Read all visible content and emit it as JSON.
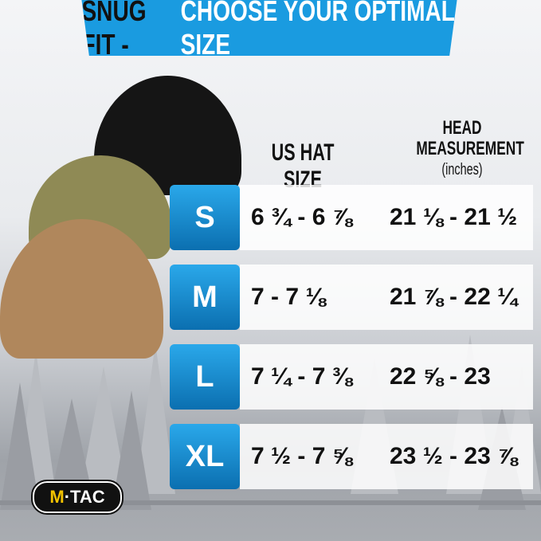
{
  "banner": {
    "title_part1": "SNUG FIT - ",
    "title_part2": "CHOOSE YOUR OPTIMAL SIZE",
    "color": "#1a9be0"
  },
  "headers": {
    "us_hat_size": "US HAT SIZE",
    "head_line1": "HEAD",
    "head_line2": "MEASUREMENT",
    "head_unit": "(inches)"
  },
  "rows": [
    {
      "size": "S",
      "us": "6 ¾ - 6 ⅞",
      "head": "21 ⅛ - 21 ½"
    },
    {
      "size": "M",
      "us": "7 - 7 ⅛",
      "head": "21 ⅞ - 22 ¼"
    },
    {
      "size": "L",
      "us": "7 ¼ - 7 ⅜",
      "head": "22 ⅝ - 23"
    },
    {
      "size": "XL",
      "us": "7 ½ - 7 ⅝",
      "head": "23 ½ - 23 ⅞"
    }
  ],
  "logo": {
    "part1": "M",
    "part2": "·TAC"
  },
  "hats": [
    {
      "color": "#111111"
    },
    {
      "color": "#8f8a55"
    },
    {
      "color": "#b0875c"
    }
  ]
}
